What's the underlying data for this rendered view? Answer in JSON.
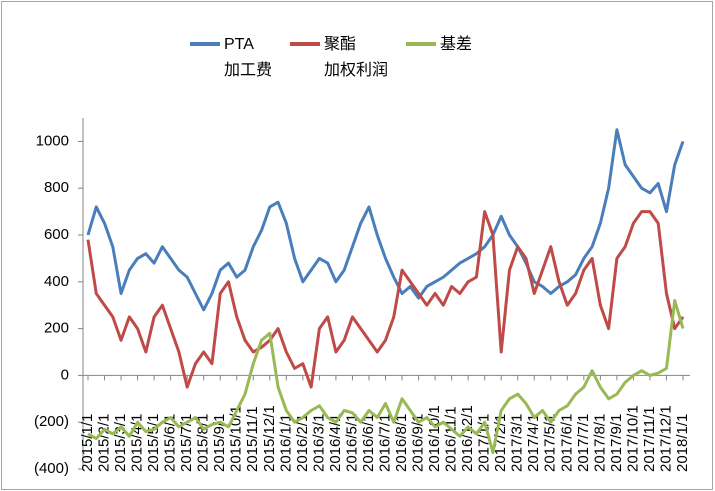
{
  "chart_data": {
    "type": "line",
    "categories": [
      "2015/1/1",
      null,
      "2015/2/1",
      null,
      "2015/3/1",
      null,
      "2015/4/1",
      null,
      "2015/5/1",
      null,
      "2015/6/1",
      null,
      "2015/7/1",
      null,
      "2015/8/1",
      null,
      "2015/9/1",
      null,
      "2015/10/1",
      null,
      "2015/11/1",
      null,
      "2015/12/1",
      null,
      "2016/1/1",
      null,
      "2016/2/1",
      null,
      "2016/3/1",
      null,
      "2016/4/1",
      null,
      "2016/5/1",
      null,
      "2016/6/1",
      null,
      "2016/7/1",
      null,
      "2016/8/1",
      null,
      "2016/9/1",
      null,
      "2016/10/1",
      null,
      "2016/11/1",
      null,
      "2016/12/1",
      null,
      "2017/1/1",
      null,
      "2017/2/1",
      null,
      "2017/3/1",
      null,
      "2017/4/1",
      null,
      "2017/5/1",
      null,
      "2017/6/1",
      null,
      "2017/7/1",
      null,
      "2017/8/1",
      null,
      "2017/9/1",
      null,
      "2017/10/1",
      null,
      "2017/11/1",
      null,
      "2017/12/1",
      null,
      "2018/1/1"
    ],
    "series": [
      {
        "name": "PTA\n加工费",
        "color": "#4a7ebb",
        "values": [
          600,
          720,
          650,
          550,
          350,
          450,
          500,
          520,
          480,
          550,
          500,
          450,
          420,
          350,
          280,
          350,
          450,
          480,
          420,
          450,
          550,
          620,
          720,
          740,
          650,
          500,
          400,
          450,
          500,
          480,
          400,
          450,
          550,
          650,
          720,
          600,
          500,
          420,
          350,
          380,
          330,
          380,
          400,
          420,
          450,
          480,
          500,
          520,
          550,
          600,
          680,
          600,
          550,
          480,
          400,
          380,
          350,
          380,
          400,
          430,
          500,
          550,
          650,
          800,
          1050,
          900,
          850,
          800,
          780,
          820,
          700,
          900,
          1000
        ]
      },
      {
        "name": "聚酯\n加权利润",
        "color": "#be4b48",
        "values": [
          580,
          350,
          300,
          250,
          150,
          250,
          200,
          100,
          250,
          300,
          200,
          100,
          -50,
          50,
          100,
          50,
          350,
          400,
          250,
          150,
          100,
          120,
          150,
          200,
          100,
          30,
          50,
          -50,
          200,
          250,
          100,
          150,
          250,
          200,
          150,
          100,
          150,
          250,
          450,
          400,
          350,
          300,
          350,
          300,
          380,
          350,
          400,
          420,
          700,
          600,
          100,
          450,
          550,
          500,
          350,
          450,
          550,
          400,
          300,
          350,
          450,
          500,
          300,
          200,
          500,
          550,
          650,
          700,
          700,
          650,
          350,
          200,
          250
        ]
      },
      {
        "name": "基差",
        "color": "#98b954",
        "values": [
          -250,
          -270,
          -230,
          -250,
          -220,
          -260,
          -200,
          -240,
          -230,
          -200,
          -180,
          -220,
          -200,
          -180,
          -230,
          -210,
          -200,
          -220,
          -150,
          -80,
          50,
          150,
          180,
          -50,
          -150,
          -200,
          -180,
          -150,
          -130,
          -180,
          -200,
          -150,
          -160,
          -200,
          -150,
          -180,
          -120,
          -200,
          -100,
          -150,
          -200,
          -180,
          -220,
          -200,
          -230,
          -260,
          -220,
          -250,
          -200,
          -330,
          -150,
          -100,
          -80,
          -120,
          -180,
          -150,
          -200,
          -150,
          -130,
          -80,
          -50,
          20,
          -50,
          -100,
          -80,
          -30,
          0,
          20,
          0,
          10,
          30,
          320,
          200
        ]
      }
    ],
    "ylim": [
      -400,
      1100
    ],
    "yticks": [
      {
        "value": -400,
        "label": "(400)"
      },
      {
        "value": -200,
        "label": "(200)"
      },
      0,
      200,
      400,
      600,
      800,
      1000
    ],
    "legend": "top"
  }
}
